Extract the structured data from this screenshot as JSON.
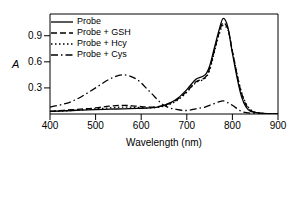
{
  "chart_data": {
    "type": "line",
    "x_label": "Wavelength (nm)",
    "y_label": "A",
    "x": [
      400,
      450,
      500,
      530,
      560,
      590,
      620,
      650,
      680,
      700,
      720,
      740,
      750,
      760,
      770,
      780,
      790,
      800,
      820,
      840,
      860,
      900
    ],
    "series": [
      {
        "name": "Probe",
        "color": "#000000",
        "line_style": "solid",
        "values": [
          0.03,
          0.04,
          0.05,
          0.055,
          0.06,
          0.065,
          0.07,
          0.1,
          0.18,
          0.28,
          0.4,
          0.45,
          0.55,
          0.75,
          0.95,
          1.1,
          1.0,
          0.7,
          0.2,
          0.03,
          0.01,
          0
        ]
      },
      {
        "name": "Probe + GSH",
        "color": "#000000",
        "line_style": "dashed",
        "values": [
          0.03,
          0.05,
          0.07,
          0.09,
          0.1,
          0.09,
          0.08,
          0.1,
          0.17,
          0.26,
          0.37,
          0.42,
          0.52,
          0.72,
          0.92,
          1.05,
          0.98,
          0.72,
          0.24,
          0.04,
          0.01,
          0
        ]
      },
      {
        "name": "Probe + Hcy",
        "color": "#000000",
        "line_style": "dotted",
        "values": [
          0.03,
          0.04,
          0.06,
          0.07,
          0.08,
          0.075,
          0.07,
          0.09,
          0.16,
          0.25,
          0.36,
          0.41,
          0.5,
          0.7,
          0.9,
          1.02,
          0.97,
          0.72,
          0.25,
          0.05,
          0.01,
          0
        ]
      },
      {
        "name": "Probe + Cys",
        "color": "#000000",
        "line_style": "dashdot",
        "values": [
          0.08,
          0.15,
          0.3,
          0.4,
          0.45,
          0.4,
          0.25,
          0.1,
          0.05,
          0.04,
          0.06,
          0.08,
          0.1,
          0.12,
          0.14,
          0.15,
          0.13,
          0.1,
          0.03,
          0.01,
          0.005,
          0
        ]
      }
    ],
    "xlim": [
      400,
      900
    ],
    "xticks": [
      400,
      500,
      600,
      700,
      800,
      900
    ],
    "ylim": [
      0,
      1.15
    ],
    "yticks": [
      0.3,
      0.6,
      0.9
    ],
    "legend": "upper left"
  }
}
